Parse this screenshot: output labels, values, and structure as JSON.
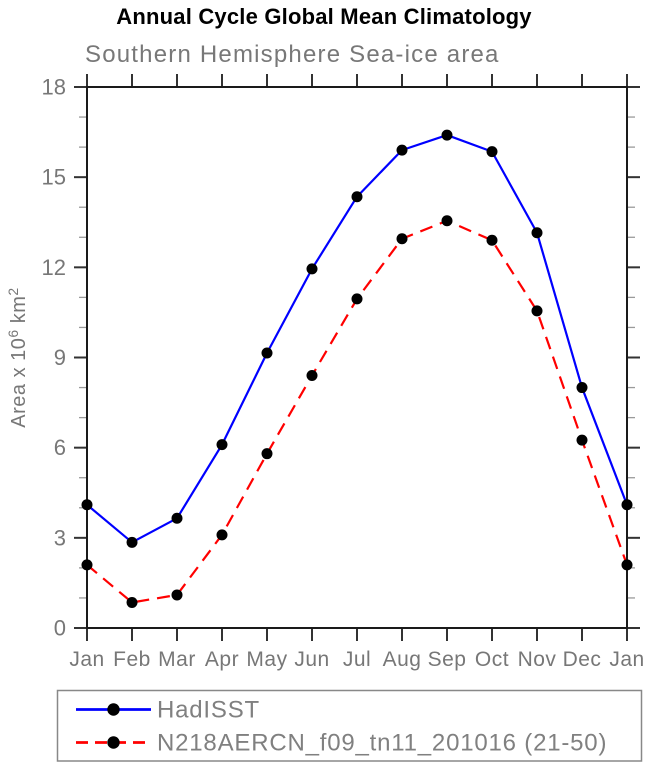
{
  "chart_data": {
    "type": "line",
    "title": "Annual Cycle Global Mean Climatology",
    "subtitle": "Southern Hemisphere Sea-ice area",
    "xlabel": "",
    "ylabel": "Area x 10^6 km^2",
    "ylabel_parts": [
      {
        "text": "Area x 10",
        "sup": false
      },
      {
        "text": "6",
        "sup": true
      },
      {
        "text": " km",
        "sup": false
      },
      {
        "text": "2",
        "sup": true
      }
    ],
    "categories": [
      "Jan",
      "Feb",
      "Mar",
      "Apr",
      "May",
      "Jun",
      "Jul",
      "Aug",
      "Sep",
      "Oct",
      "Nov",
      "Dec",
      "Jan"
    ],
    "ylim": [
      0,
      18
    ],
    "yticks_major": [
      0,
      3,
      6,
      9,
      12,
      15,
      18
    ],
    "ytick_minor_step": 1,
    "grid": false,
    "legend_position": "bottom-boxed",
    "series": [
      {
        "name": "HadISST",
        "color": "#0000ff",
        "line_style": "solid",
        "marker": "filled-circle",
        "marker_color": "#000000",
        "values": [
          4.1,
          2.85,
          3.65,
          6.1,
          9.15,
          11.95,
          14.35,
          15.9,
          16.4,
          15.85,
          13.15,
          8.0,
          4.1
        ]
      },
      {
        "name": "N218AERCN_f09_tn11_201016 (21-50)",
        "color": "#ff0000",
        "line_style": "dashed",
        "marker": "filled-circle",
        "marker_color": "#000000",
        "values": [
          2.1,
          0.85,
          1.1,
          3.1,
          5.8,
          8.4,
          10.95,
          12.95,
          13.55,
          12.9,
          10.55,
          6.25,
          2.1
        ]
      }
    ]
  },
  "colors": {
    "title": "#000000",
    "subtitle": "#787878",
    "axis_frame": "#1a1a1a",
    "major_tick": "#333333",
    "minor_tick": "#9a9a9a",
    "tick_label": "#777777",
    "axis_label": "#777777",
    "legend_border": "#888888",
    "legend_text": "#808080",
    "background": "#ffffff"
  }
}
